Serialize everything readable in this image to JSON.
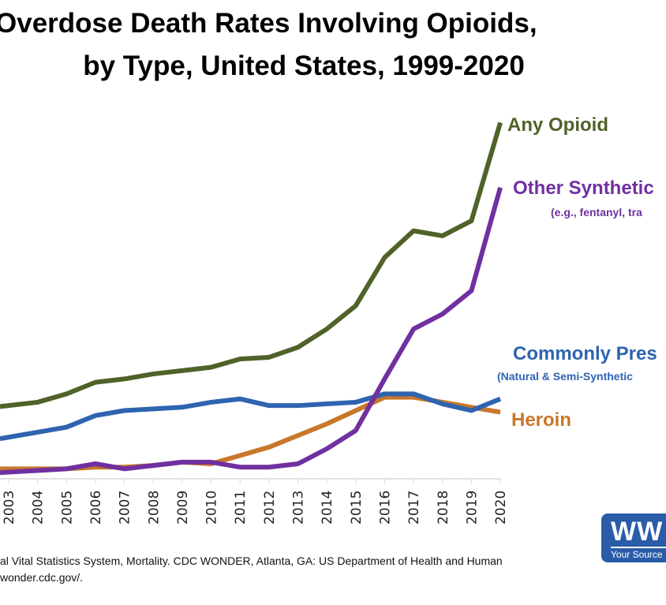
{
  "title": {
    "line1": "Overdose Death Rates Involving Opioids,",
    "line2": "by Type, United States, 1999-2020"
  },
  "chart_data": {
    "type": "line",
    "categories": [
      "2003",
      "2004",
      "2005",
      "2006",
      "2007",
      "2008",
      "2009",
      "2010",
      "2011",
      "2012",
      "2013",
      "2014",
      "2015",
      "2016",
      "2017",
      "2018",
      "2019",
      "2020"
    ],
    "grid": false,
    "legend": "inline-right",
    "series": [
      {
        "name": "Any Opioid",
        "color": "#4F6228",
        "values": [
          4.4,
          4.6,
          5.1,
          5.8,
          6.0,
          6.3,
          6.5,
          6.7,
          7.2,
          7.3,
          7.9,
          9.0,
          10.4,
          13.3,
          14.9,
          14.6,
          15.5,
          21.4
        ]
      },
      {
        "name": "Other Synthetic Opioids",
        "note": "(e.g., fentanyl, tramadol)",
        "color": "#7030A0",
        "values": [
          0.4,
          0.5,
          0.6,
          0.9,
          0.6,
          0.8,
          1.0,
          1.0,
          0.7,
          0.7,
          0.9,
          1.8,
          2.9,
          6.0,
          9.0,
          9.9,
          11.3,
          17.5
        ]
      },
      {
        "name": "Commonly Prescribed Opioids",
        "note": "(Natural & Semi-Synthetic Opioids and Methadone)",
        "color": "#2E64B0",
        "values": [
          2.5,
          2.8,
          3.1,
          3.8,
          4.1,
          4.2,
          4.3,
          4.6,
          4.8,
          4.4,
          4.4,
          4.5,
          4.6,
          5.1,
          5.1,
          4.5,
          4.1,
          4.8
        ]
      },
      {
        "name": "Heroin",
        "color": "#C8782A",
        "values": [
          0.6,
          0.6,
          0.6,
          0.7,
          0.7,
          0.8,
          1.0,
          0.9,
          1.4,
          1.9,
          2.6,
          3.3,
          4.1,
          4.9,
          4.9,
          4.6,
          4.3,
          4.0
        ]
      }
    ]
  },
  "labels": {
    "any": "Any Opioid",
    "synthetic": "Other Synthetic",
    "synthetic_note": "(e.g., fentanyl, tra",
    "prescribed": "Commonly Pres",
    "prescribed_note": "(Natural & Semi-Synthetic",
    "heroin": "Heroin"
  },
  "source": {
    "line1": "al Vital Statistics System, Mortality. CDC WONDER, Atlanta, GA: US Department of Health and Human",
    "line2": "wonder.cdc.gov/."
  },
  "logo": {
    "mark": "WW",
    "tagline": "Your Source"
  }
}
